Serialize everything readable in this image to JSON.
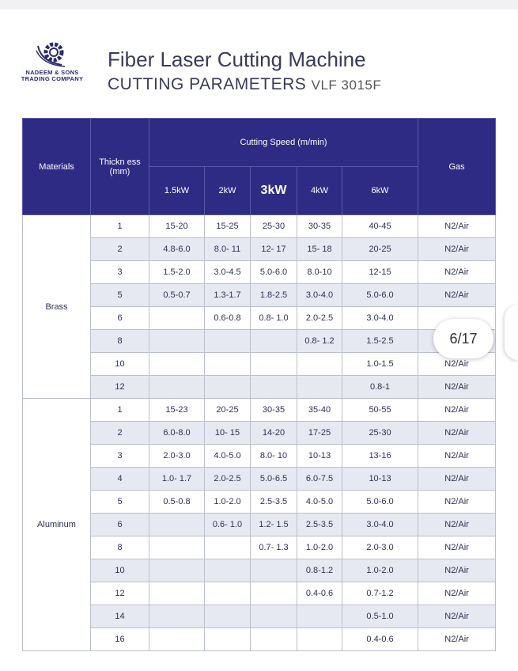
{
  "logo": {
    "line1": "NADEEM & SONS",
    "line2": "TRADING COMPANY"
  },
  "title": "Fiber Laser Cutting Machine",
  "subtitle": "CUTTING PARAMETERS",
  "model": "VLF 3015F",
  "header": {
    "materials": "Materials",
    "thickness": "Thickn ess (mm)",
    "speed": "Cutting Speed (m/min)",
    "gas": "Gas",
    "powers": [
      "1.5kW",
      "2kW",
      "3kW",
      "4kW",
      "6kW"
    ]
  },
  "groups": [
    {
      "material": "Brass",
      "rows": [
        [
          "1",
          "15-20",
          "15-25",
          "25-30",
          "30-35",
          "40-45",
          "N2/Air"
        ],
        [
          "2",
          "4.8-6.0",
          "8.0- 11",
          "12- 17",
          "15- 18",
          "20-25",
          "N2/Air"
        ],
        [
          "3",
          "1.5-2.0",
          "3.0-4.5",
          "5.0-6.0",
          "8.0-10",
          "12-15",
          "N2/Air"
        ],
        [
          "5",
          "0.5-0.7",
          "1.3-1.7",
          "1.8-2.5",
          "3.0-4.0",
          "5.0-6.0",
          "N2/Air"
        ],
        [
          "6",
          "",
          "0.6-0.8",
          "0.8- 1.0",
          "2.0-2.5",
          "3.0-4.0",
          ""
        ],
        [
          "8",
          "",
          "",
          "",
          "0.8- 1.2",
          "1.5-2.5",
          ""
        ],
        [
          "10",
          "",
          "",
          "",
          "",
          "1.0-1.5",
          "N2/Air"
        ],
        [
          "12",
          "",
          "",
          "",
          "",
          "0.8-1",
          "N2/Air"
        ]
      ]
    },
    {
      "material": "Aluminum",
      "rows": [
        [
          "1",
          "15-23",
          "20-25",
          "30-35",
          "35-40",
          "50-55",
          "N2/Air"
        ],
        [
          "2",
          "6.0-8.0",
          "10- 15",
          "14-20",
          "17-25",
          "25-30",
          "N2/Air"
        ],
        [
          "3",
          "2.0-3.0",
          "4.0-5.0",
          "8.0- 10",
          "10-13",
          "13-16",
          "N2/Air"
        ],
        [
          "4",
          "1.0- 1.7",
          "2.0-2.5",
          "5.0-6.5",
          "6.0-7.5",
          "10-13",
          "N2/Air"
        ],
        [
          "5",
          "0.5-0.8",
          "1.0-2.0",
          "2.5-3.5",
          "4.0-5.0",
          "5.0-6.0",
          "N2/Air"
        ],
        [
          "6",
          "",
          "0.6- 1.0",
          "1.2- 1.5",
          "2.5-3.5",
          "3.0-4.0",
          "N2/Air"
        ],
        [
          "8",
          "",
          "",
          "0.7- 1.3",
          "1.0-2.0",
          "2.0-3.0",
          "N2/Air"
        ],
        [
          "10",
          "",
          "",
          "",
          "0.8-1.2",
          "1.0-2.0",
          "N2/Air"
        ],
        [
          "12",
          "",
          "",
          "",
          "0.4-0.6",
          "0.7-1.2",
          "N2/Air"
        ],
        [
          "14",
          "",
          "",
          "",
          "",
          "0.5-1.0",
          "N2/Air"
        ],
        [
          "16",
          "",
          "",
          "",
          "",
          "0.4-0.6",
          "N2/Air"
        ]
      ]
    }
  ],
  "page_indicator": "6/17",
  "colors": {
    "header": "#2e2b85",
    "alt_row": "#e7e9f2"
  }
}
